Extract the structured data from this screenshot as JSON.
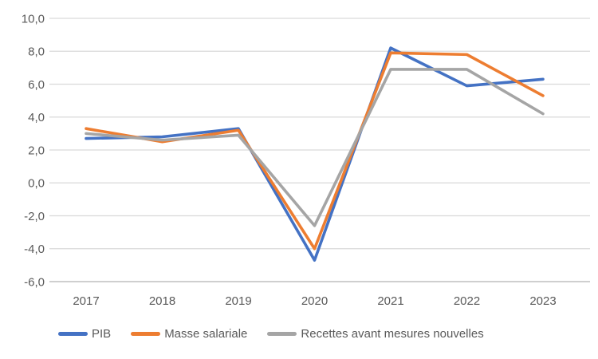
{
  "chart_data": {
    "type": "line",
    "title": "",
    "xlabel": "",
    "ylabel": "",
    "categories": [
      "2017",
      "2018",
      "2019",
      "2020",
      "2021",
      "2022",
      "2023"
    ],
    "series": [
      {
        "name": "PIB",
        "color": "#4472C4",
        "values": [
          2.7,
          2.8,
          3.3,
          -4.7,
          8.2,
          5.9,
          6.3
        ]
      },
      {
        "name": "Masse salariale",
        "color": "#ED7D31",
        "values": [
          3.3,
          2.5,
          3.2,
          -4.0,
          7.9,
          7.8,
          5.3
        ]
      },
      {
        "name": "Recettes avant mesures nouvelles",
        "color": "#A5A5A5",
        "values": [
          3.0,
          2.6,
          2.9,
          -2.6,
          6.9,
          6.9,
          4.2
        ]
      }
    ],
    "ylim": [
      -6,
      10
    ],
    "y_ticks": [
      10,
      8,
      6,
      4,
      2,
      0,
      -2,
      -4,
      -6
    ],
    "y_tick_labels": [
      "10,0",
      "8,0",
      "6,0",
      "4,0",
      "2,0",
      "0,0",
      "-2,0",
      "-4,0",
      "-6,0"
    ],
    "decimal_separator": ",",
    "grid": true,
    "gridline_color": "#D9D9D9",
    "axis_line_color": "#BFBFBF",
    "tick_label_color": "#595959",
    "legend_position": "bottom"
  }
}
